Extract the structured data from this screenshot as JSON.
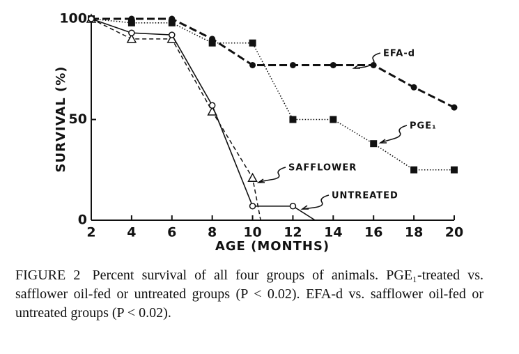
{
  "chart_data": {
    "type": "line",
    "xlabel": "AGE (MONTHS)",
    "ylabel": "SURVIVAL (%)",
    "xlim": [
      2,
      20
    ],
    "xticks": [
      2,
      4,
      6,
      8,
      10,
      12,
      14,
      16,
      18,
      20
    ],
    "ylim": [
      0,
      100
    ],
    "yticks": [
      0,
      50,
      100
    ],
    "series": [
      {
        "name": "EFA-d",
        "color": "#111111",
        "marker": "filled-circle",
        "line": "dashed-thick",
        "x": [
          2,
          4,
          6,
          8,
          10,
          12,
          14,
          16,
          18,
          20
        ],
        "values": [
          100,
          100,
          100,
          90,
          77,
          77,
          77,
          77,
          66,
          56
        ]
      },
      {
        "name": "PGE₁",
        "color": "#111111",
        "marker": "filled-square",
        "line": "dotted",
        "x": [
          2,
          4,
          6,
          8,
          10,
          12,
          14,
          16,
          18,
          20
        ],
        "values": [
          100,
          98,
          98,
          88,
          88,
          50,
          50,
          38,
          25,
          25
        ]
      },
      {
        "name": "SAFFLOWER",
        "color": "#111111",
        "marker": "open-triangle",
        "line": "dashed",
        "x": [
          2,
          4,
          6,
          8,
          10,
          10.4
        ],
        "values": [
          100,
          90,
          90,
          54,
          21,
          0
        ]
      },
      {
        "name": "UNTREATED",
        "color": "#111111",
        "marker": "open-circle",
        "line": "solid",
        "x": [
          2,
          4,
          6,
          8,
          10,
          12,
          13.1
        ],
        "values": [
          100,
          93,
          92,
          57,
          7,
          7,
          0
        ]
      }
    ]
  },
  "caption": {
    "label": "FIGURE 2",
    "text": "Percent survival of all four groups of animals. PGE₁-treated vs. safflower oil-fed or untreated groups (P < 0.02). EFA-d vs. safflower oil-fed or untreated groups (P < 0.02)."
  }
}
